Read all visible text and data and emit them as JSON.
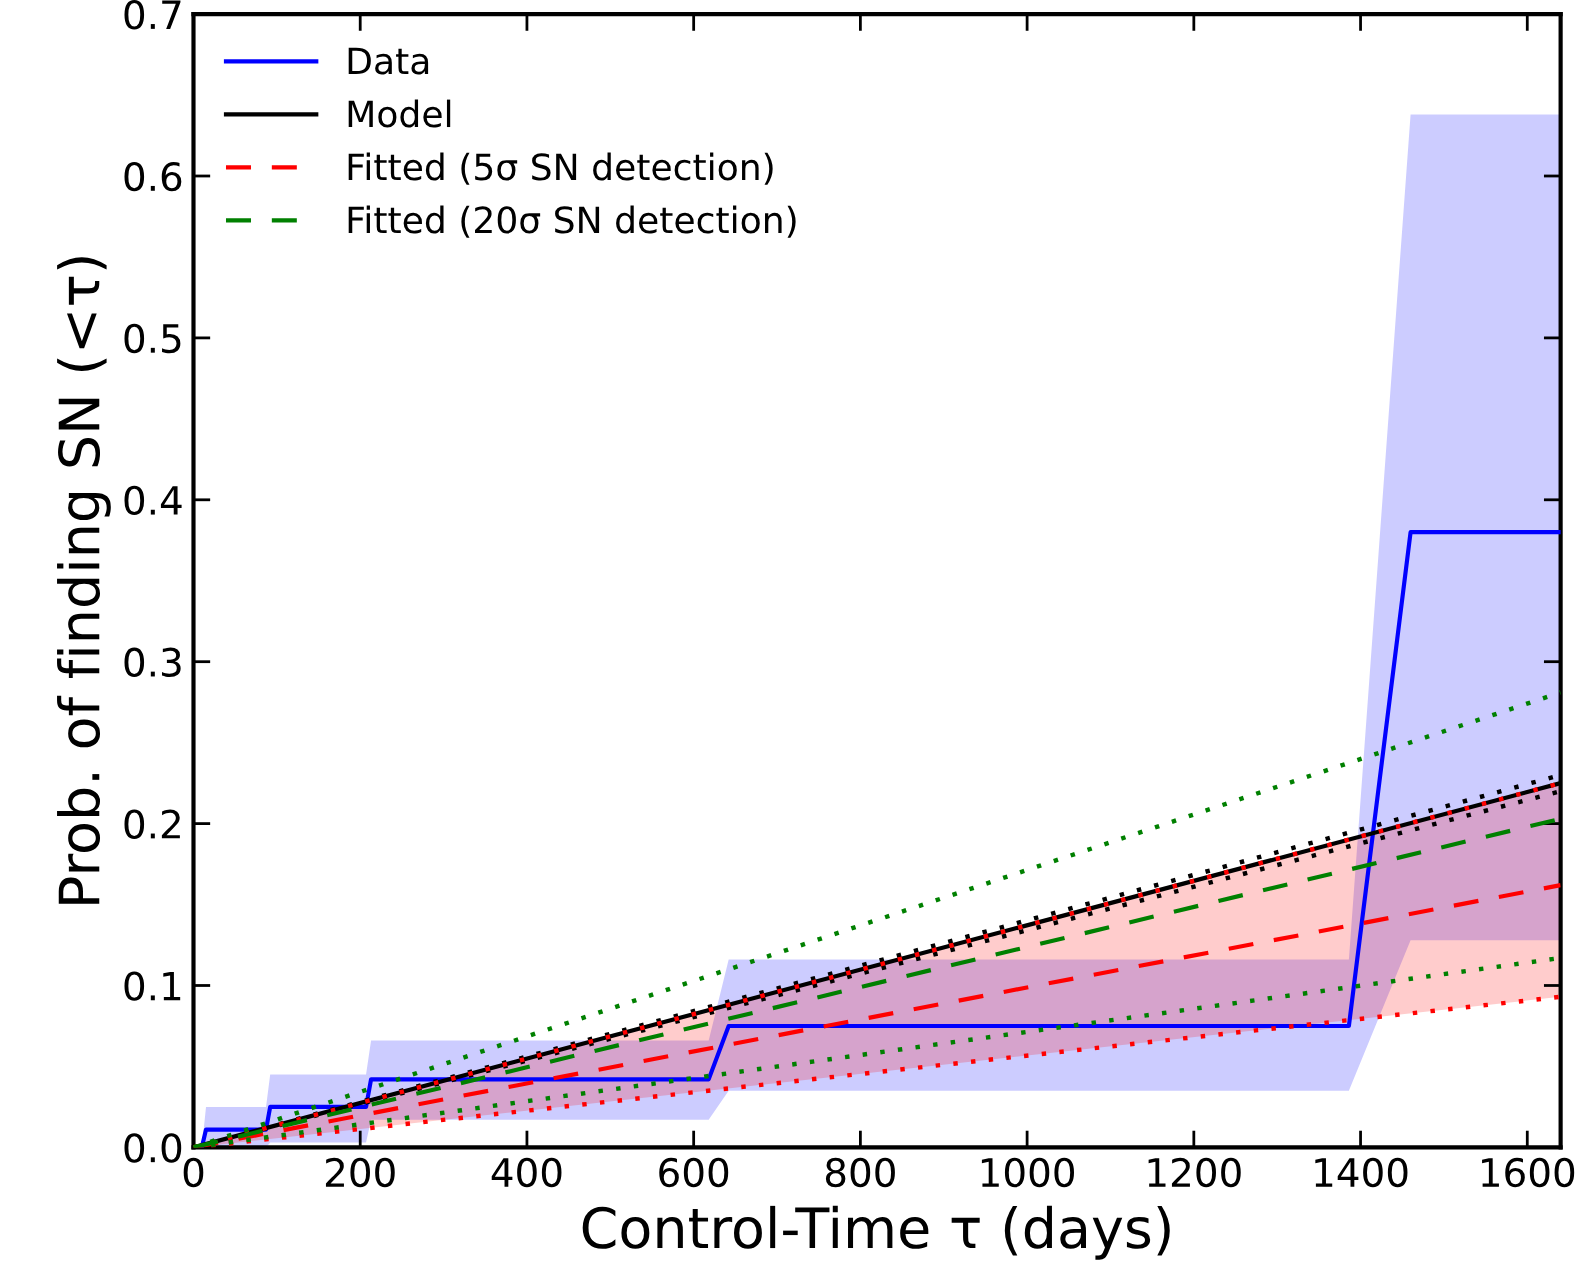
{
  "chart_data": {
    "type": "line",
    "xlabel": "Control-Time τ (days)",
    "ylabel": "Prob. of finding SN (<τ)",
    "xlim": [
      0,
      1640
    ],
    "ylim": [
      0,
      0.7
    ],
    "xticks": [
      0,
      200,
      400,
      600,
      800,
      1000,
      1200,
      1400,
      1600
    ],
    "yticks": [
      {
        "value": 0,
        "label": "0.0"
      },
      {
        "value": 0.1,
        "label": "0.1"
      },
      {
        "value": 0.2,
        "label": "0.2"
      },
      {
        "value": 0.3,
        "label": "0.3"
      },
      {
        "value": 0.4,
        "label": "0.4"
      },
      {
        "value": 0.5,
        "label": "0.5"
      },
      {
        "value": 0.6,
        "label": "0.6"
      },
      {
        "value": 0.7,
        "label": "0.7"
      }
    ],
    "grid": false,
    "legend": "top left",
    "series": [
      {
        "name": "Data",
        "color": "#0000ff",
        "line_style": "solid",
        "x": [
          10,
          15,
          87,
          92,
          207,
          213,
          618,
          642,
          1386,
          1460,
          1640
        ],
        "values": [
          0.0,
          0.011,
          0.011,
          0.025,
          0.025,
          0.042,
          0.042,
          0.075,
          0.075,
          0.38,
          0.38
        ],
        "lower": [
          0.0,
          0.0,
          0.0,
          0.003,
          0.003,
          0.017,
          0.017,
          0.035,
          0.035,
          0.128,
          0.128
        ],
        "upper": [
          0.0,
          0.025,
          0.025,
          0.045,
          0.045,
          0.066,
          0.066,
          0.116,
          0.116,
          0.638,
          0.638
        ]
      },
      {
        "name": "Model",
        "color": "#000000",
        "line_style": "solid",
        "x": [
          0,
          1640
        ],
        "values": [
          0,
          0.225
        ]
      },
      {
        "color": "#000000",
        "line_style": "dotted",
        "x": [
          0,
          1640
        ],
        "values": [
          0,
          0.23
        ]
      },
      {
        "color": "#000000",
        "line_style": "dotted",
        "x": [
          0,
          1640
        ],
        "values": [
          0,
          0.22
        ]
      },
      {
        "name": "Fitted (5σ SN detection)",
        "color": "#ff0000",
        "line_style": "dashed",
        "x": [
          0,
          1640
        ],
        "values": [
          0,
          0.162
        ],
        "lower": [
          0,
          0.093
        ],
        "upper": [
          0,
          0.225
        ]
      },
      {
        "color": "#ff0000",
        "line_style": "dotted",
        "x": [
          0,
          1640
        ],
        "values": [
          0,
          0.093
        ]
      },
      {
        "color": "#ff0000",
        "line_style": "dotted",
        "x": [
          0,
          1640
        ],
        "values": [
          0,
          0.225
        ]
      },
      {
        "name": "Fitted (20σ SN detection)",
        "color": "#008000",
        "line_style": "dashed",
        "x": [
          0,
          1640
        ],
        "values": [
          0,
          0.203
        ]
      },
      {
        "color": "#008000",
        "line_style": "dotted",
        "x": [
          0,
          1640
        ],
        "values": [
          0,
          0.281
        ]
      },
      {
        "color": "#008000",
        "line_style": "dotted",
        "x": [
          0,
          1640
        ],
        "values": [
          0,
          0.117
        ]
      }
    ]
  }
}
